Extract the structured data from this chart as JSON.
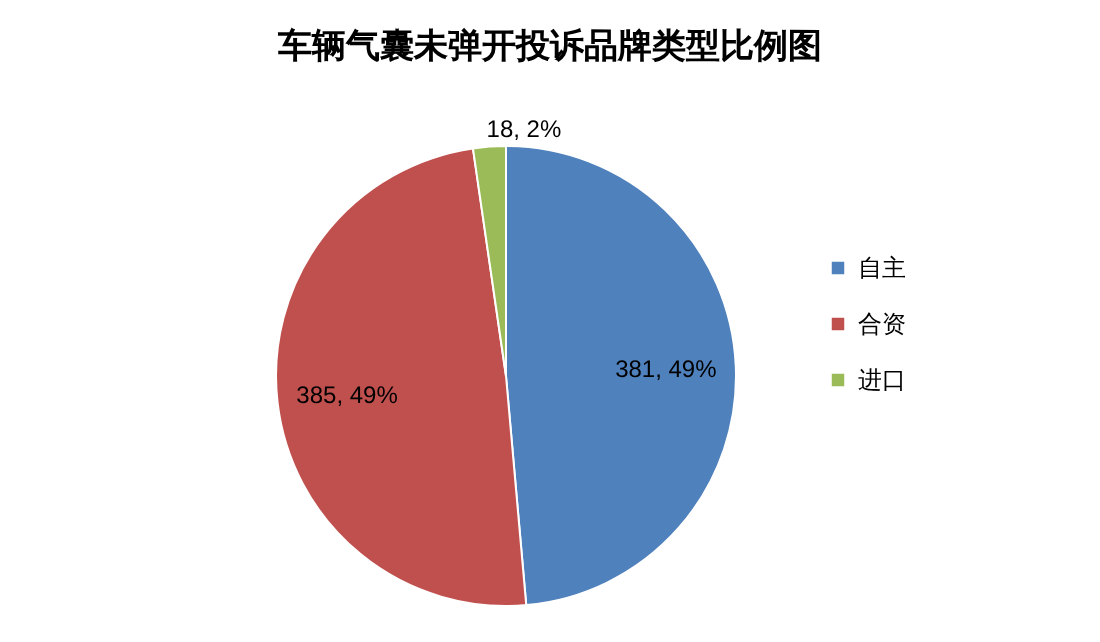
{
  "chart_data": {
    "type": "pie",
    "title": "车辆气囊未弹开投诉品牌类型比例图",
    "categories": [
      "自主",
      "合资",
      "进口"
    ],
    "values": [
      381,
      385,
      18
    ],
    "colors": [
      "#4f81bd",
      "#c0504d",
      "#9bbb59"
    ],
    "value_labels": [
      "381, 49%",
      "385, 49%",
      "18, 2%"
    ],
    "legend": "right"
  }
}
